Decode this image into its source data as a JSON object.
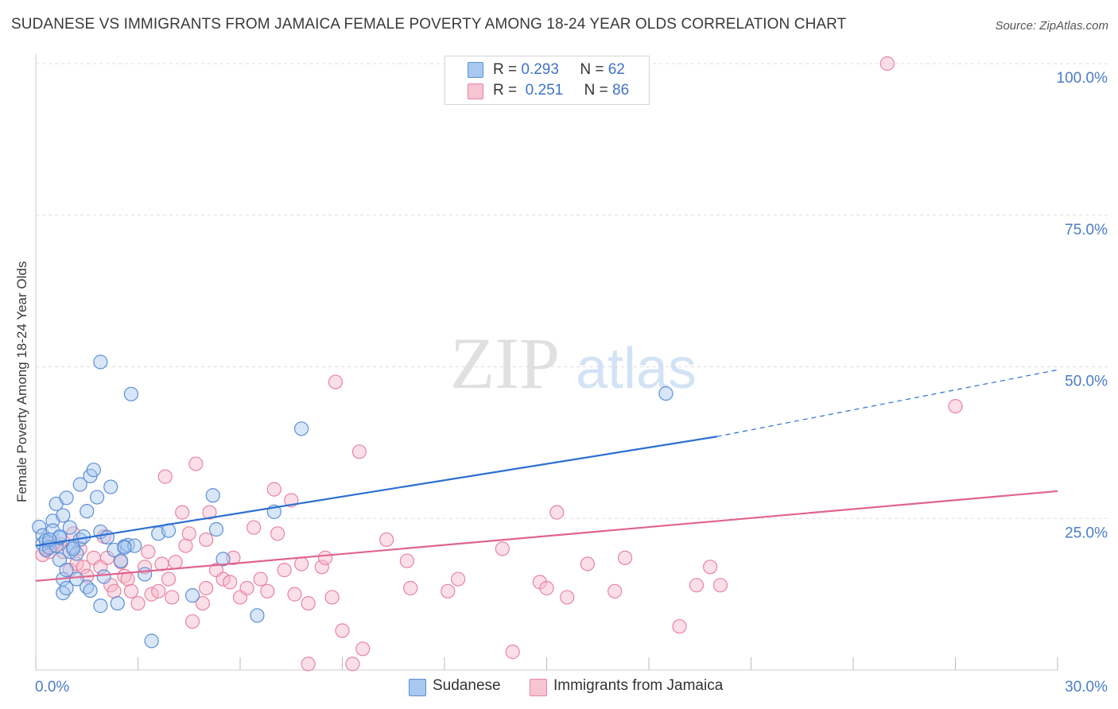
{
  "header": {
    "title": "SUDANESE VS IMMIGRANTS FROM JAMAICA FEMALE POVERTY AMONG 18-24 YEAR OLDS CORRELATION CHART",
    "source": "Source: ZipAtlas.com"
  },
  "watermark": "ZIPatlas",
  "legend": {
    "rows": [
      {
        "r_label": "R =",
        "r_value": "0.293",
        "n_label": "N =",
        "n_value": "62"
      },
      {
        "r_label": "R =",
        "r_value": "0.251",
        "n_label": "N =",
        "n_value": "86"
      }
    ]
  },
  "bottom_legend": {
    "items": [
      "Sudanese",
      "Immigrants from Jamaica"
    ]
  },
  "colors": {
    "sudanese_fill": "#a8c8f0",
    "sudanese_stroke": "#5b8fd6",
    "sudanese_line": "#2b6fd1",
    "jamaica_fill": "#f7b8cb",
    "jamaica_stroke": "#e8849f",
    "jamaica_line": "#e0648d",
    "tick_text": "#4a7cc9",
    "grid": "#dddddd"
  },
  "chart_data": {
    "type": "scatter",
    "title": "SUDANESE VS IMMIGRANTS FROM JAMAICA FEMALE POVERTY AMONG 18-24 YEAR OLDS CORRELATION CHART",
    "xlabel": "",
    "ylabel": "Female Poverty Among 18-24 Year Olds",
    "x_unit": "%",
    "y_unit": "%",
    "xlim": [
      0,
      30
    ],
    "ylim": [
      0,
      100
    ],
    "x_tick_labels": [
      "0.0%",
      "30.0%"
    ],
    "y_tick_labels": [
      "100.0%",
      "75.0%",
      "50.0%",
      "25.0%"
    ],
    "y_ticks": [
      100,
      75,
      50,
      25
    ],
    "grid": true,
    "legend_position": "top-center",
    "series": [
      {
        "name": "Sudanese",
        "R": 0.293,
        "N": 62,
        "trend": {
          "x0": 0,
          "y0": 20.5,
          "x1": 20,
          "y1": 38.5,
          "dashed_to_x": 30,
          "dashed_to_y": 49.5
        },
        "points": [
          [
            0.1,
            23.6
          ],
          [
            0.2,
            22.2
          ],
          [
            0.2,
            20.8
          ],
          [
            0.3,
            21.4
          ],
          [
            0.3,
            19.8
          ],
          [
            0.4,
            21.1
          ],
          [
            0.4,
            20.2
          ],
          [
            0.5,
            24.6
          ],
          [
            0.5,
            23.0
          ],
          [
            0.6,
            20.5
          ],
          [
            0.6,
            27.4
          ],
          [
            0.7,
            21.8
          ],
          [
            0.7,
            18.2
          ],
          [
            0.8,
            25.5
          ],
          [
            0.8,
            15.0
          ],
          [
            0.8,
            12.7
          ],
          [
            0.9,
            16.5
          ],
          [
            0.9,
            28.4
          ],
          [
            1.0,
            23.5
          ],
          [
            1.0,
            19.5
          ],
          [
            1.1,
            20.3
          ],
          [
            1.2,
            19.2
          ],
          [
            1.2,
            15.0
          ],
          [
            1.3,
            30.6
          ],
          [
            1.3,
            21.5
          ],
          [
            1.4,
            22.0
          ],
          [
            1.5,
            26.2
          ],
          [
            1.5,
            13.7
          ],
          [
            1.6,
            32.0
          ],
          [
            1.6,
            13.1
          ],
          [
            1.7,
            33.0
          ],
          [
            1.8,
            28.5
          ],
          [
            1.9,
            22.8
          ],
          [
            1.9,
            10.6
          ],
          [
            2.0,
            15.4
          ],
          [
            2.1,
            21.9
          ],
          [
            2.2,
            30.2
          ],
          [
            2.3,
            19.8
          ],
          [
            2.4,
            11.0
          ],
          [
            2.5,
            18.0
          ],
          [
            2.6,
            20.4
          ],
          [
            2.7,
            20.6
          ],
          [
            2.8,
            45.5
          ],
          [
            2.9,
            20.5
          ],
          [
            3.2,
            15.8
          ],
          [
            3.4,
            4.8
          ],
          [
            3.6,
            22.5
          ],
          [
            3.9,
            23.0
          ],
          [
            4.6,
            12.3
          ],
          [
            5.2,
            28.8
          ],
          [
            5.3,
            23.2
          ],
          [
            5.5,
            18.3
          ],
          [
            6.5,
            9.0
          ],
          [
            7.0,
            26.1
          ],
          [
            7.8,
            39.8
          ],
          [
            1.9,
            50.8
          ],
          [
            18.5,
            45.6
          ],
          [
            0.9,
            13.5
          ],
          [
            1.1,
            20.0
          ],
          [
            2.6,
            20.2
          ],
          [
            0.7,
            22.0
          ],
          [
            0.4,
            21.5
          ]
        ]
      },
      {
        "name": "Immigrants from Jamaica",
        "R": 0.251,
        "N": 86,
        "trend": {
          "x0": 0,
          "y0": 14.7,
          "x1": 30,
          "y1": 29.5
        },
        "points": [
          [
            0.2,
            19.0
          ],
          [
            0.3,
            20.0
          ],
          [
            0.4,
            19.5
          ],
          [
            0.5,
            20.5
          ],
          [
            0.7,
            20.8
          ],
          [
            0.8,
            19.5
          ],
          [
            1.0,
            16.5
          ],
          [
            1.1,
            22.5
          ],
          [
            1.2,
            17.5
          ],
          [
            1.3,
            20.0
          ],
          [
            1.4,
            17.0
          ],
          [
            1.5,
            15.5
          ],
          [
            1.7,
            18.5
          ],
          [
            1.9,
            17.0
          ],
          [
            2.0,
            22.0
          ],
          [
            2.1,
            18.5
          ],
          [
            2.2,
            14.0
          ],
          [
            2.3,
            13.0
          ],
          [
            2.5,
            17.8
          ],
          [
            2.6,
            15.5
          ],
          [
            2.7,
            15.0
          ],
          [
            2.8,
            13.0
          ],
          [
            3.0,
            11.0
          ],
          [
            3.2,
            17.0
          ],
          [
            3.3,
            19.5
          ],
          [
            3.4,
            12.5
          ],
          [
            3.6,
            13.0
          ],
          [
            3.7,
            17.5
          ],
          [
            3.8,
            31.9
          ],
          [
            3.9,
            15.0
          ],
          [
            4.0,
            12.0
          ],
          [
            4.1,
            17.8
          ],
          [
            4.3,
            26.0
          ],
          [
            4.4,
            20.5
          ],
          [
            4.5,
            22.5
          ],
          [
            4.6,
            8.0
          ],
          [
            4.7,
            34.0
          ],
          [
            4.9,
            11.0
          ],
          [
            5.0,
            13.5
          ],
          [
            5.1,
            26.0
          ],
          [
            5.3,
            16.5
          ],
          [
            5.5,
            15.0
          ],
          [
            5.7,
            14.5
          ],
          [
            5.8,
            18.5
          ],
          [
            6.0,
            12.0
          ],
          [
            6.2,
            13.5
          ],
          [
            6.4,
            23.5
          ],
          [
            6.6,
            15.0
          ],
          [
            6.8,
            13.0
          ],
          [
            7.0,
            29.8
          ],
          [
            7.1,
            22.5
          ],
          [
            7.3,
            16.5
          ],
          [
            7.5,
            28.0
          ],
          [
            7.6,
            12.5
          ],
          [
            7.8,
            17.5
          ],
          [
            8.0,
            11.0
          ],
          [
            8.4,
            17.0
          ],
          [
            8.5,
            18.5
          ],
          [
            8.7,
            12.0
          ],
          [
            8.8,
            47.5
          ],
          [
            9.0,
            6.5
          ],
          [
            9.3,
            1.0
          ],
          [
            9.5,
            36.0
          ],
          [
            9.6,
            3.5
          ],
          [
            10.3,
            21.5
          ],
          [
            10.9,
            18.0
          ],
          [
            11.0,
            13.5
          ],
          [
            12.1,
            13.0
          ],
          [
            12.4,
            15.0
          ],
          [
            13.7,
            20.0
          ],
          [
            14.0,
            3.0
          ],
          [
            14.8,
            14.5
          ],
          [
            15.0,
            13.5
          ],
          [
            15.3,
            26.0
          ],
          [
            15.6,
            12.0
          ],
          [
            16.2,
            17.5
          ],
          [
            17.0,
            13.0
          ],
          [
            17.3,
            18.5
          ],
          [
            18.9,
            7.2
          ],
          [
            19.4,
            14.0
          ],
          [
            19.8,
            17.0
          ],
          [
            20.1,
            14.0
          ],
          [
            25.0,
            100.0
          ],
          [
            27.0,
            43.5
          ],
          [
            8.0,
            1.0
          ],
          [
            5.0,
            21.5
          ]
        ]
      }
    ]
  }
}
